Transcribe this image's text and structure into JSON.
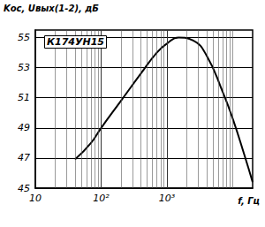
{
  "chart_data": {
    "type": "line",
    "title": "К174УН15",
    "y_label": "Kос, Uвых(1-2), дБ",
    "x_label": "f, Гц",
    "log": "x",
    "grid": true,
    "color": "#000000",
    "x": [
      40,
      70,
      100,
      200,
      400,
      700,
      1000,
      1500,
      2500,
      4000,
      7000,
      10000,
      15000,
      20000
    ],
    "values": [
      46.9,
      48.0,
      49.0,
      50.8,
      52.6,
      54.0,
      54.6,
      55.0,
      54.8,
      53.8,
      51.4,
      49.6,
      47.2,
      45.4
    ],
    "xlim": [
      10,
      20000
    ],
    "xticks": [
      {
        "value": 10,
        "label": "10"
      },
      {
        "value": 100,
        "label": "10²"
      },
      {
        "value": 1000,
        "label": "10³"
      }
    ],
    "ylim": [
      45,
      55.5
    ],
    "yticks": [
      45,
      47,
      49,
      51,
      53,
      55
    ]
  }
}
